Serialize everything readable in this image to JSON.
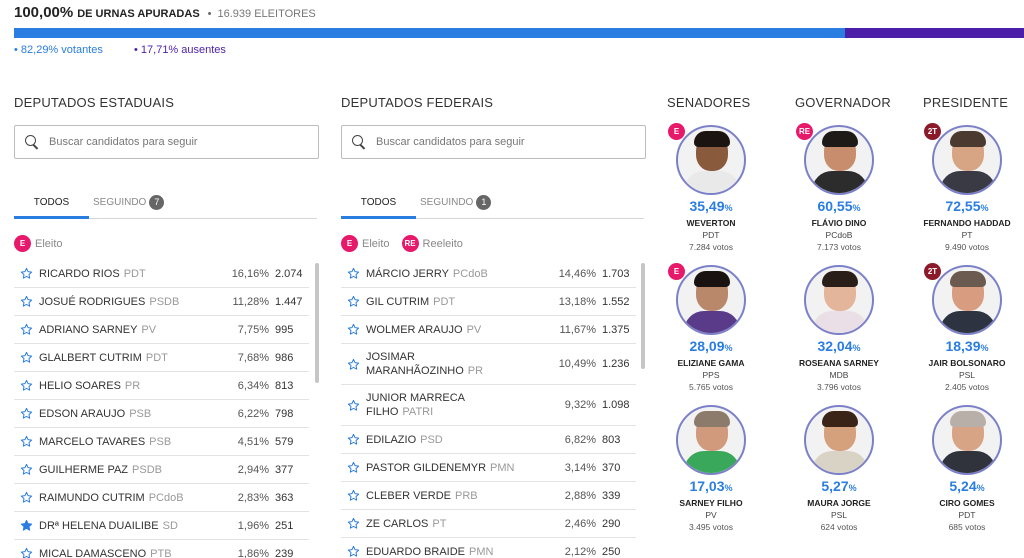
{
  "header": {
    "apuradas_pct": "100,00%",
    "apuradas_label": "DE URNAS APURADAS",
    "separator": "•",
    "eleitores": "16.939  ELEITORES",
    "votantes": "• 82,29%  votantes",
    "ausentes": "• 17,71%  ausentes",
    "votantes_fraction": 0.8229,
    "ausentes_fraction": 0.1771,
    "colors": {
      "votantes": "#2a7de1",
      "ausentes": "#4b1fa8"
    }
  },
  "estaduais": {
    "title": "DEPUTADOS ESTADUAIS",
    "search_placeholder": "Buscar candidatos para seguir",
    "tab_todos": "TODOS",
    "tab_seguindo": "SEGUINDO",
    "seguindo_count": "7",
    "legend": [
      {
        "badge": "E",
        "label": "Eleito"
      }
    ],
    "rows": [
      {
        "name": "RICARDO RIOS",
        "party": "PDT",
        "pct": "16,16%",
        "votes": "2.074",
        "following": false
      },
      {
        "name": "JOSUÉ RODRIGUES",
        "party": "PSDB",
        "pct": "11,28%",
        "votes": "1.447",
        "following": false
      },
      {
        "name": "ADRIANO SARNEY",
        "party": "PV",
        "pct": "7,75%",
        "votes": "995",
        "following": false
      },
      {
        "name": "GLALBERT CUTRIM",
        "party": "PDT",
        "pct": "7,68%",
        "votes": "986",
        "following": false
      },
      {
        "name": "HELIO SOARES",
        "party": "PR",
        "pct": "6,34%",
        "votes": "813",
        "following": false
      },
      {
        "name": "EDSON ARAUJO",
        "party": "PSB",
        "pct": "6,22%",
        "votes": "798",
        "following": false
      },
      {
        "name": "MARCELO TAVARES",
        "party": "PSB",
        "pct": "4,51%",
        "votes": "579",
        "following": false
      },
      {
        "name": "GUILHERME PAZ",
        "party": "PSDB",
        "pct": "2,94%",
        "votes": "377",
        "following": false
      },
      {
        "name": "RAIMUNDO CUTRIM",
        "party": "PCdoB",
        "pct": "2,83%",
        "votes": "363",
        "following": false
      },
      {
        "name": "DRª HELENA DUAILIBE",
        "party": "SD",
        "pct": "1,96%",
        "votes": "251",
        "following": true
      },
      {
        "name": "MICAL DAMASCENO",
        "party": "PTB",
        "pct": "1,86%",
        "votes": "239",
        "following": false
      }
    ]
  },
  "federais": {
    "title": "DEPUTADOS FEDERAIS",
    "search_placeholder": "Buscar candidatos para seguir",
    "tab_todos": "TODOS",
    "tab_seguindo": "SEGUINDO",
    "seguindo_count": "1",
    "legend": [
      {
        "badge": "E",
        "label": "Eleito"
      },
      {
        "badge": "RE",
        "label": "Reeleito"
      }
    ],
    "rows": [
      {
        "name": "MÁRCIO JERRY",
        "party": "PCdoB",
        "pct": "14,46%",
        "votes": "1.703",
        "following": false
      },
      {
        "name": "GIL CUTRIM",
        "party": "PDT",
        "pct": "13,18%",
        "votes": "1.552",
        "following": false
      },
      {
        "name": "WOLMER ARAUJO",
        "party": "PV",
        "pct": "11,67%",
        "votes": "1.375",
        "following": false
      },
      {
        "name": "JOSIMAR MARANHÃOZINHO",
        "party": "PR",
        "pct": "10,49%",
        "votes": "1.236",
        "following": false
      },
      {
        "name": "JUNIOR MARRECA FILHO",
        "party": "PATRI",
        "pct": "9,32%",
        "votes": "1.098",
        "following": false
      },
      {
        "name": "EDILAZIO",
        "party": "PSD",
        "pct": "6,82%",
        "votes": "803",
        "following": false
      },
      {
        "name": "PASTOR GILDENEMYR",
        "party": "PMN",
        "pct": "3,14%",
        "votes": "370",
        "following": false
      },
      {
        "name": "CLEBER VERDE",
        "party": "PRB",
        "pct": "2,88%",
        "votes": "339",
        "following": false
      },
      {
        "name": "ZE CARLOS",
        "party": "PT",
        "pct": "2,46%",
        "votes": "290",
        "following": false
      },
      {
        "name": "EDUARDO BRAIDE",
        "party": "PMN",
        "pct": "2,12%",
        "votes": "250",
        "following": false
      }
    ]
  },
  "senadores": {
    "title": "SENADORES",
    "candidates": [
      {
        "badge": "E",
        "pct": "35,49",
        "unit": "%",
        "name": "WEVERTON",
        "party": "PDT",
        "votes": "7.284  votos",
        "photo": {
          "skin": "#8a5a3c",
          "hair": "#1c1410",
          "shirt": "#e9e9e9"
        }
      },
      {
        "badge": "E",
        "pct": "28,09",
        "unit": "%",
        "name": "ELIZIANE GAMA",
        "party": "PPS",
        "votes": "5.765  votos",
        "photo": {
          "skin": "#b9876a",
          "hair": "#1a1210",
          "shirt": "#5a3b8a"
        }
      },
      {
        "badge": "",
        "pct": "17,03",
        "unit": "%",
        "name": "SARNEY FILHO",
        "party": "PV",
        "votes": "3.495  votos",
        "photo": {
          "skin": "#d29a7c",
          "hair": "#8c7a6a",
          "shirt": "#3aa85a"
        }
      }
    ]
  },
  "governador": {
    "title": "GOVERNADOR",
    "candidates": [
      {
        "badge": "RE",
        "pct": "60,55",
        "unit": "%",
        "name": "FLÁVIO DINO",
        "party": "PCdoB",
        "votes": "7.173  votos",
        "photo": {
          "skin": "#c88d6c",
          "hair": "#1e1a18",
          "shirt": "#2c2c2c"
        }
      },
      {
        "badge": "",
        "pct": "32,04",
        "unit": "%",
        "name": "ROSEANA SARNEY",
        "party": "MDB",
        "votes": "3.796  votos",
        "photo": {
          "skin": "#e3b59a",
          "hair": "#2a1e18",
          "shirt": "#eadfe6"
        }
      },
      {
        "badge": "",
        "pct": "5,27",
        "unit": "%",
        "name": "MAURA JORGE",
        "party": "PSL",
        "votes": "624  votos",
        "photo": {
          "skin": "#d5a07c",
          "hair": "#3a2418",
          "shirt": "#d9d3c6"
        }
      }
    ]
  },
  "presidente": {
    "title": "PRESIDENTE",
    "candidates": [
      {
        "badge": "2T",
        "pct": "72,55",
        "unit": "%",
        "name": "FERNANDO HADDAD",
        "party": "PT",
        "votes": "9.490  votos",
        "photo": {
          "skin": "#d7a584",
          "hair": "#4a3a30",
          "shirt": "#3a3a44"
        }
      },
      {
        "badge": "2T",
        "pct": "18,39",
        "unit": "%",
        "name": "JAIR BOLSONARO",
        "party": "PSL",
        "votes": "2.405  votos",
        "photo": {
          "skin": "#d89c80",
          "hair": "#6a5a50",
          "shirt": "#2d3340"
        }
      },
      {
        "badge": "",
        "pct": "5,24",
        "unit": "%",
        "name": "CIRO GOMES",
        "party": "PDT",
        "votes": "685  votos",
        "photo": {
          "skin": "#d8a486",
          "hair": "#b8b0a8",
          "shirt": "#30323c"
        }
      }
    ]
  }
}
